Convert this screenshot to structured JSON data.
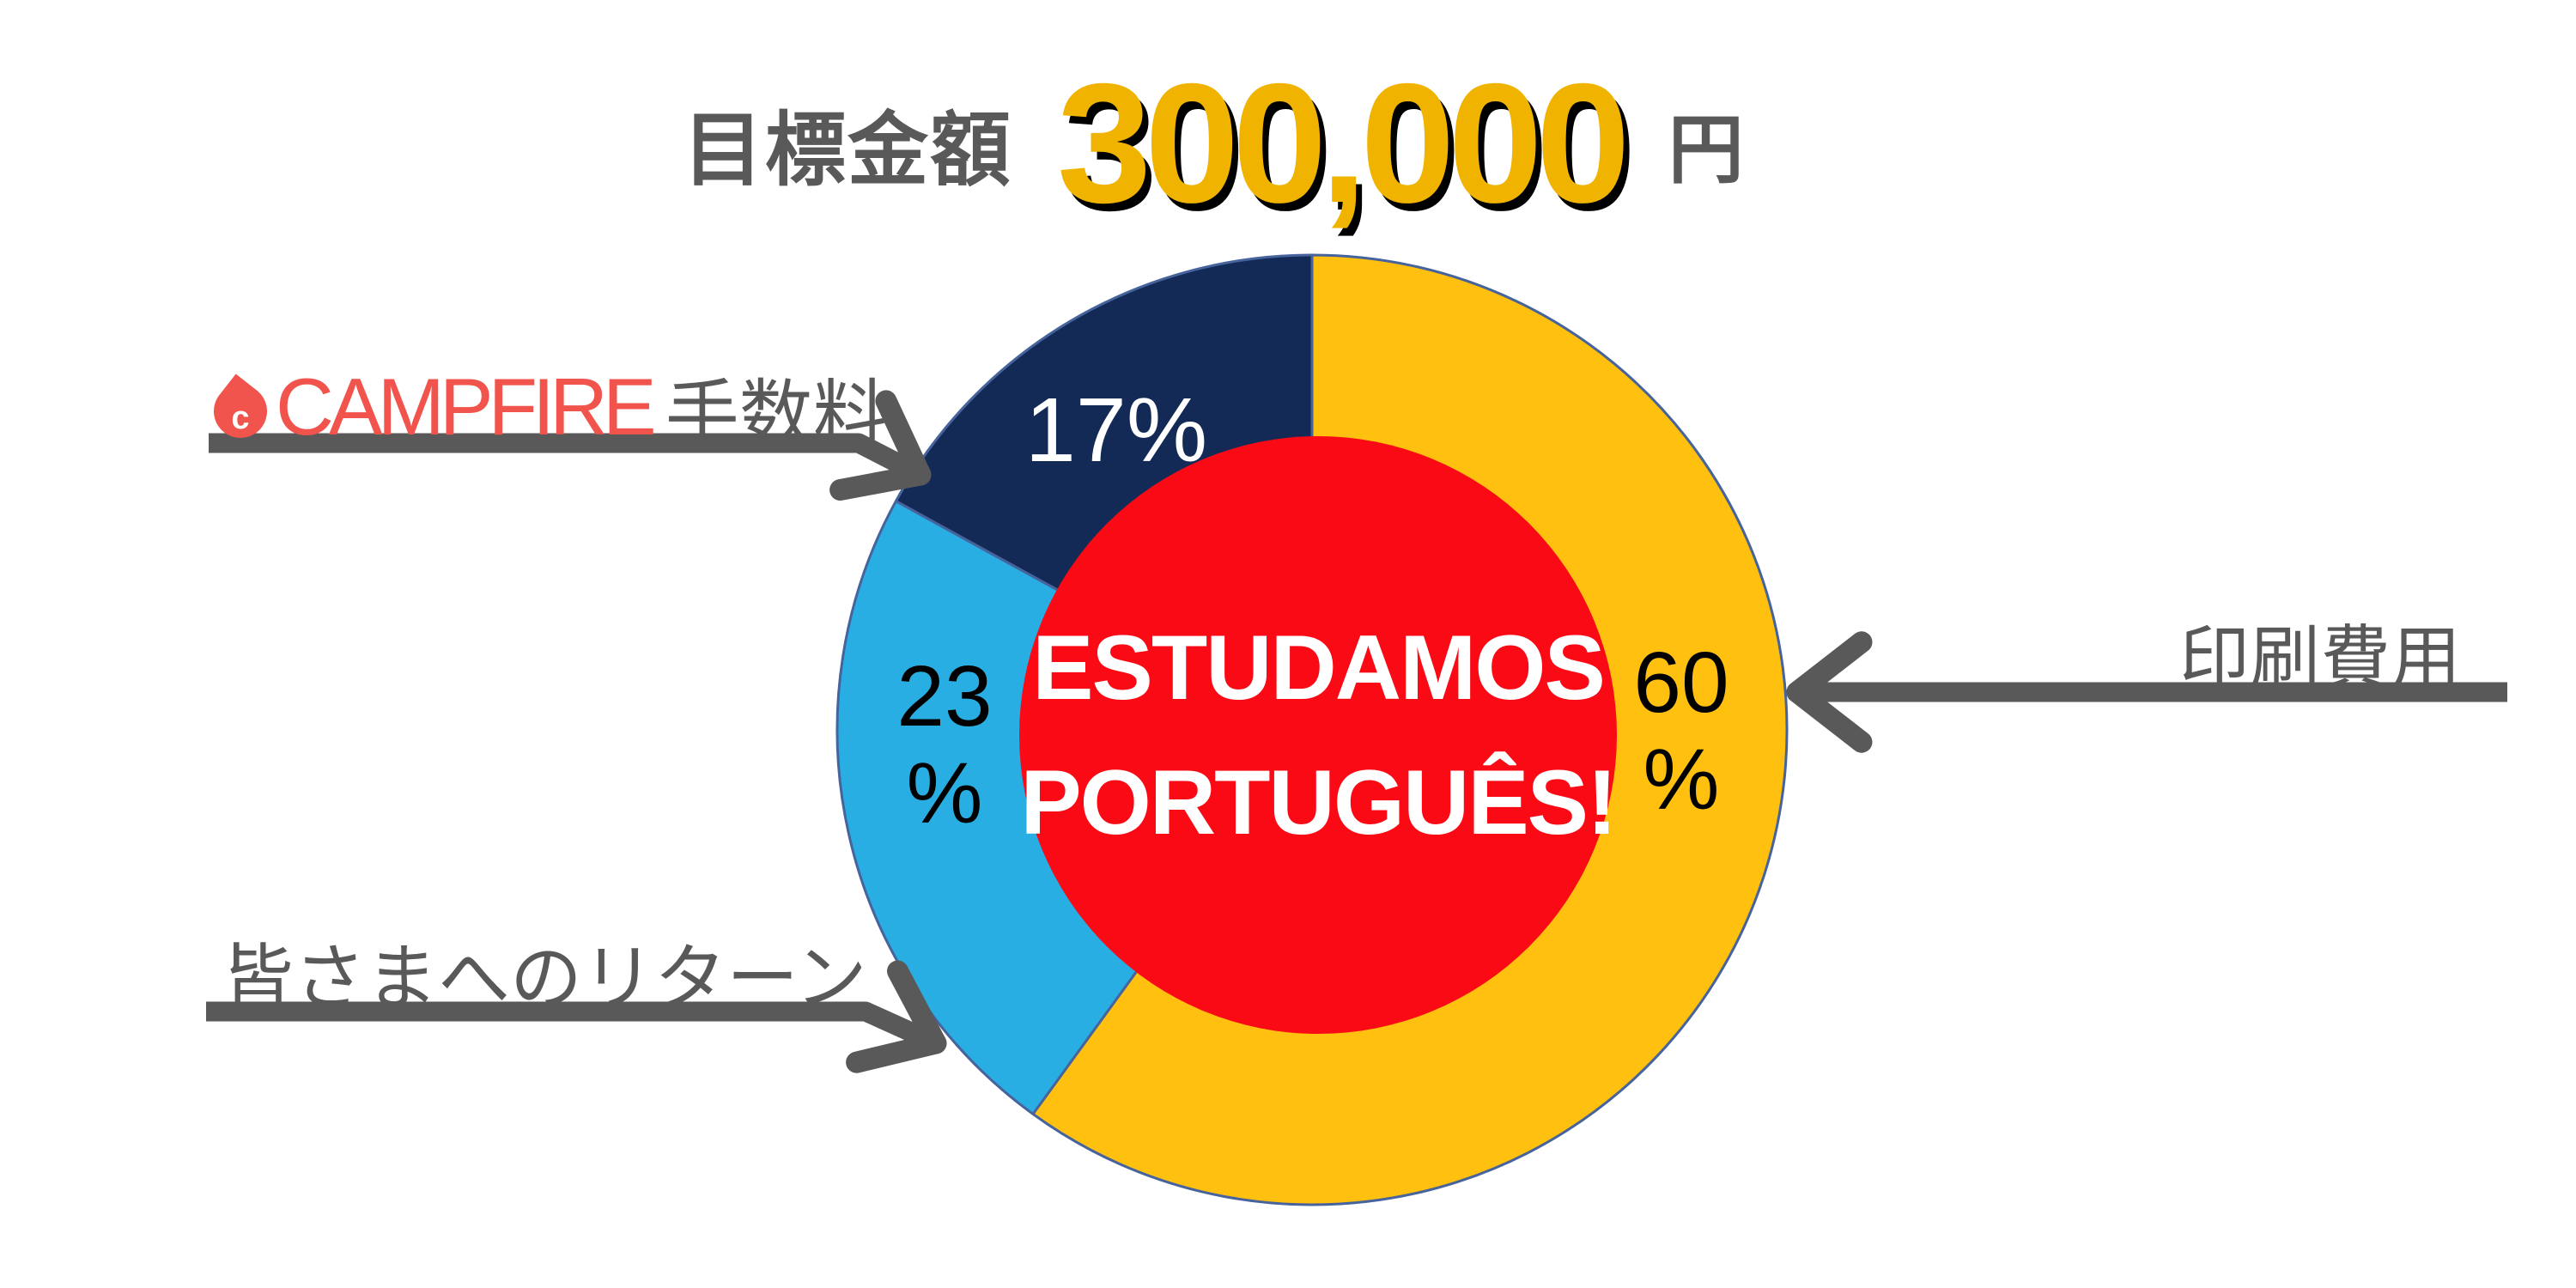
{
  "title": {
    "label": "目標金額",
    "amount": "300,000",
    "unit": "円"
  },
  "colors": {
    "background": "#FFFFFF",
    "text_gray": "#595959",
    "arrow_gray": "#595959",
    "title_amount_gold": "#F0B400",
    "pie_outline": "#46639C",
    "campfire_red": "#F0544C"
  },
  "chart_data": {
    "type": "pie",
    "subtype": "donut_with_center_badge",
    "title": "目標金額 300,000 円",
    "start_angle_deg": 0,
    "direction": "clockwise",
    "legend": "none",
    "series": [
      {
        "key": "print-cost",
        "label": "印刷費用",
        "value": 60,
        "unit": "%",
        "color": "#FFC010",
        "value_label": "60\n%",
        "label_color": "#000000"
      },
      {
        "key": "returns",
        "label": "皆さまへのリターン",
        "value": 23,
        "unit": "%",
        "color": "#29AEE4",
        "value_label": "23\n%",
        "label_color": "#000000"
      },
      {
        "key": "campfire-fee",
        "label": "CAMPFIRE手数料",
        "value": 17,
        "unit": "%",
        "color": "#142A56",
        "value_label": "17%",
        "label_color": "#FFFFFF"
      }
    ],
    "center_badge": {
      "lines": [
        "ESTUDAMOS",
        "PORTUGUÊS!"
      ],
      "bg": "#FA0A14",
      "fg": "#FFFFFF"
    }
  },
  "callouts": {
    "campfire_fee": {
      "brand": "CAMPFIRE",
      "logo_letter": "c",
      "text": "手数料"
    },
    "print_cost": {
      "text": "印刷費用"
    },
    "returns": {
      "text": "皆さまへのリターン"
    }
  }
}
